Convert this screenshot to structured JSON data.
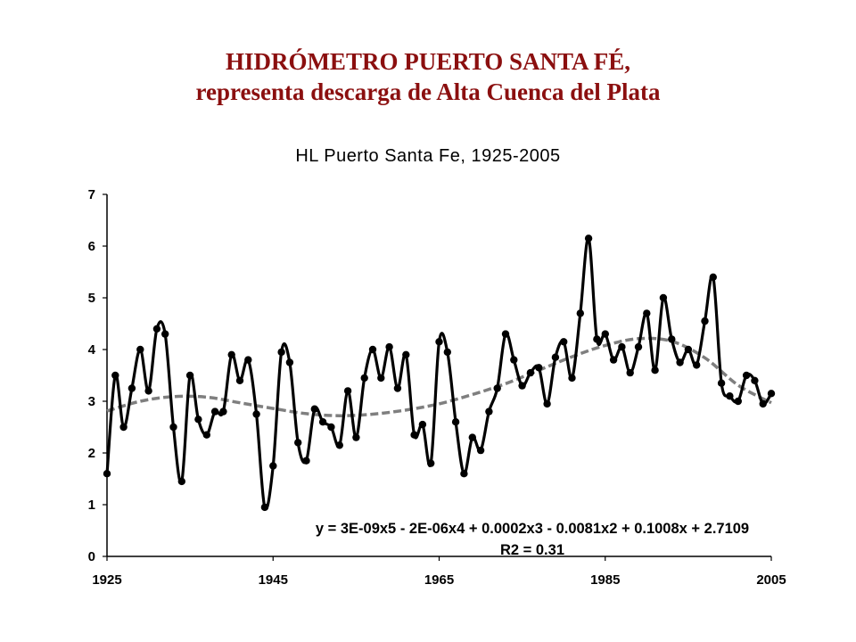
{
  "slide": {
    "title_line1": "HIDRÓMETRO PUERTO SANTA FÉ,",
    "title_line2": "representa descarga de Alta Cuenca del Plata"
  },
  "colors": {
    "title": "#8b0f0f",
    "series": "#000000",
    "trend": "#7f7f7f"
  },
  "chart_data": {
    "type": "line",
    "title": "HL Puerto Santa Fe, 1925-2005",
    "xlim": [
      1925,
      2005
    ],
    "ylim": [
      0,
      7
    ],
    "x_ticks": [
      1925,
      1945,
      1965,
      1985,
      2005
    ],
    "y_ticks": [
      0,
      1,
      2,
      3,
      4,
      5,
      6,
      7
    ],
    "grid": false,
    "series": [
      {
        "style": "solid line with circular markers",
        "x": [
          1925,
          1926,
          1927,
          1928,
          1929,
          1930,
          1931,
          1932,
          1933,
          1934,
          1935,
          1936,
          1937,
          1938,
          1939,
          1940,
          1941,
          1942,
          1943,
          1944,
          1945,
          1946,
          1947,
          1948,
          1949,
          1950,
          1951,
          1952,
          1953,
          1954,
          1955,
          1956,
          1957,
          1958,
          1959,
          1960,
          1961,
          1962,
          1963,
          1964,
          1965,
          1966,
          1967,
          1968,
          1969,
          1970,
          1971,
          1972,
          1973,
          1974,
          1975,
          1976,
          1977,
          1978,
          1979,
          1980,
          1981,
          1982,
          1983,
          1984,
          1985,
          1986,
          1987,
          1988,
          1989,
          1990,
          1991,
          1992,
          1993,
          1994,
          1995,
          1996,
          1997,
          1998,
          1999,
          2000,
          2001,
          2002,
          2003,
          2004,
          2005
        ],
        "y": [
          1.6,
          3.5,
          2.5,
          3.25,
          4.0,
          3.2,
          4.4,
          4.3,
          2.5,
          1.45,
          3.5,
          2.65,
          2.35,
          2.8,
          2.8,
          3.9,
          3.4,
          3.8,
          2.75,
          0.95,
          1.75,
          3.95,
          3.75,
          2.2,
          1.85,
          2.85,
          2.6,
          2.5,
          2.15,
          3.2,
          2.3,
          3.45,
          4.0,
          3.45,
          4.05,
          3.25,
          3.9,
          2.35,
          2.55,
          1.8,
          4.15,
          3.95,
          2.6,
          1.6,
          2.3,
          2.05,
          2.8,
          3.25,
          4.3,
          3.8,
          3.3,
          3.55,
          3.65,
          2.95,
          3.85,
          4.15,
          3.45,
          4.7,
          6.15,
          4.2,
          4.3,
          3.8,
          4.05,
          3.55,
          4.05,
          4.7,
          3.6,
          5.0,
          4.2,
          3.75,
          4.0,
          3.7,
          4.55,
          5.4,
          3.35,
          3.1,
          3.0,
          3.5,
          3.4,
          2.95,
          3.15
        ]
      },
      {
        "style": "dashed polynomial trend line",
        "x": [
          1925,
          1929,
          1933,
          1937,
          1941,
          1945,
          1949,
          1953,
          1957,
          1961,
          1965,
          1969,
          1973,
          1977,
          1981,
          1985,
          1989,
          1993,
          1997,
          2001,
          2005
        ],
        "y": [
          2.81,
          3.0,
          3.09,
          3.08,
          2.97,
          2.86,
          2.76,
          2.72,
          2.75,
          2.83,
          2.95,
          3.13,
          3.34,
          3.6,
          3.86,
          4.08,
          4.21,
          4.16,
          3.84,
          3.31,
          2.97
        ]
      }
    ],
    "annotation": {
      "equation": "y = 3E-09x5 - 2E-06x4 + 0.0002x3 - 0.0081x2 + 0.1008x + 2.7109",
      "r2": "R2 = 0.31"
    }
  }
}
